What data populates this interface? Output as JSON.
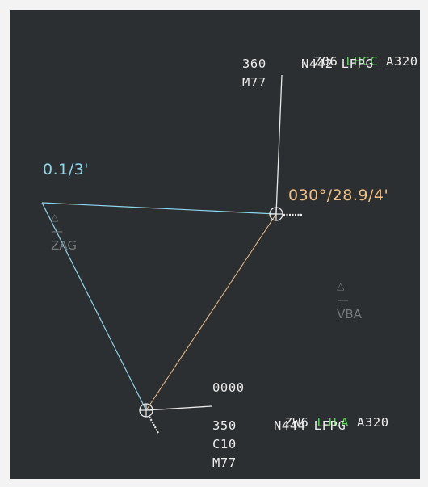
{
  "colors": {
    "background": "#2c2f31",
    "label_text": "#ececec",
    "callsign_highlight": "#5ad25a",
    "measure_cyan": "#8fd6ec",
    "measure_orange": "#f0bf86",
    "fix": "#767a7c"
  },
  "fixes": [
    {
      "id": "ZAG",
      "icon": "triangle-icon",
      "symbol": "△",
      "dash": "—"
    },
    {
      "id": "VBA",
      "icon": "triangle-icon",
      "symbol": "△",
      "dash": "—"
    }
  ],
  "measurements": {
    "cyan": "0.1/3'",
    "orange": "030°/28.9/4'"
  },
  "aircraft": [
    {
      "callsign_prefix": "Z06 ",
      "callsign": "LHCC",
      "type": " A320",
      "level": "360",
      "route": "N442 LFPG",
      "line3": "M77"
    },
    {
      "squawk": "0000",
      "callsign_prefix": "ZW6 ",
      "callsign": "LJLA",
      "type": " A320",
      "level": "350",
      "route": "N444 LFPG",
      "line3": "C10",
      "line4": "M77"
    }
  ]
}
